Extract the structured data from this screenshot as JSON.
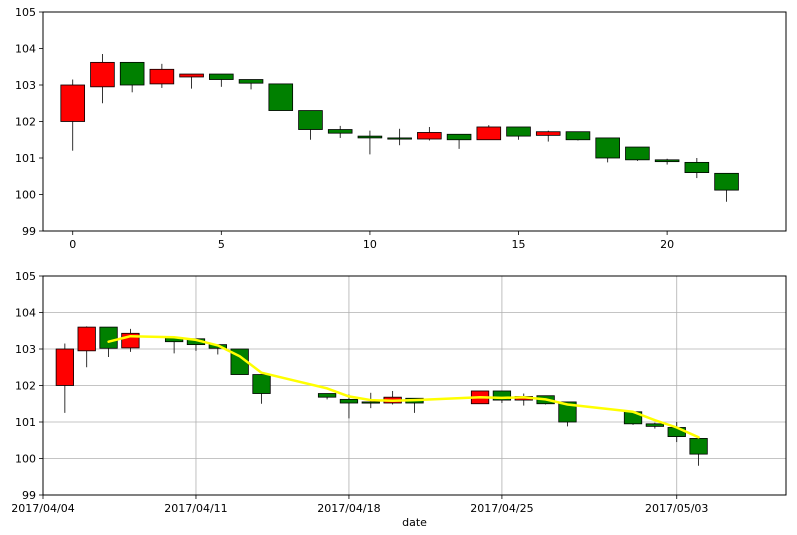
{
  "chart_data": [
    {
      "type": "candlestick",
      "xlim": [
        -1,
        24
      ],
      "ylim": [
        99,
        105
      ],
      "x_ticks": [
        0,
        5,
        10,
        15,
        20
      ],
      "y_ticks": [
        99,
        100,
        101,
        102,
        103,
        104,
        105
      ],
      "grid": false,
      "xlabel": "",
      "ylabel": "",
      "up_color": "#ff0000",
      "down_color": "#008000",
      "candles": [
        {
          "x": 0,
          "open": 102.0,
          "high": 103.15,
          "low": 101.2,
          "close": 103.0
        },
        {
          "x": 1,
          "open": 102.95,
          "high": 103.85,
          "low": 102.5,
          "close": 103.62
        },
        {
          "x": 2,
          "open": 103.62,
          "high": 103.62,
          "low": 102.8,
          "close": 103.0
        },
        {
          "x": 3,
          "open": 103.03,
          "high": 103.58,
          "low": 102.92,
          "close": 103.43
        },
        {
          "x": 4,
          "open": 103.22,
          "high": 103.3,
          "low": 102.9,
          "close": 103.3
        },
        {
          "x": 5,
          "open": 103.3,
          "high": 103.3,
          "low": 102.95,
          "close": 103.15
        },
        {
          "x": 6,
          "open": 103.15,
          "high": 103.15,
          "low": 102.88,
          "close": 103.05
        },
        {
          "x": 7,
          "open": 103.03,
          "high": 103.03,
          "low": 102.3,
          "close": 102.3
        },
        {
          "x": 8,
          "open": 102.3,
          "high": 102.3,
          "low": 101.5,
          "close": 101.78
        },
        {
          "x": 9,
          "open": 101.78,
          "high": 101.88,
          "low": 101.55,
          "close": 101.68
        },
        {
          "x": 10,
          "open": 101.6,
          "high": 101.75,
          "low": 101.1,
          "close": 101.55
        },
        {
          "x": 11,
          "open": 101.55,
          "high": 101.8,
          "low": 101.35,
          "close": 101.52
        },
        {
          "x": 12,
          "open": 101.52,
          "high": 101.85,
          "low": 101.48,
          "close": 101.7
        },
        {
          "x": 13,
          "open": 101.65,
          "high": 101.65,
          "low": 101.25,
          "close": 101.5
        },
        {
          "x": 14,
          "open": 101.5,
          "high": 101.9,
          "low": 101.5,
          "close": 101.85
        },
        {
          "x": 15,
          "open": 101.85,
          "high": 101.85,
          "low": 101.5,
          "close": 101.6
        },
        {
          "x": 16,
          "open": 101.62,
          "high": 101.75,
          "low": 101.45,
          "close": 101.72
        },
        {
          "x": 17,
          "open": 101.72,
          "high": 101.72,
          "low": 101.48,
          "close": 101.5
        },
        {
          "x": 18,
          "open": 101.55,
          "high": 101.55,
          "low": 100.88,
          "close": 101.0
        },
        {
          "x": 19,
          "open": 101.3,
          "high": 101.3,
          "low": 100.92,
          "close": 100.95
        },
        {
          "x": 20,
          "open": 100.95,
          "high": 100.98,
          "low": 100.82,
          "close": 100.9
        },
        {
          "x": 21,
          "open": 100.88,
          "high": 101.0,
          "low": 100.45,
          "close": 100.6
        },
        {
          "x": 22,
          "open": 100.58,
          "high": 100.58,
          "low": 99.8,
          "close": 100.12
        }
      ]
    },
    {
      "type": "candlestick",
      "xlim": [
        "2017-04-04",
        "2017-05-08"
      ],
      "ylim": [
        99,
        105
      ],
      "x_tick_labels": [
        "2017/04/04",
        "2017/04/11",
        "2017/04/18",
        "2017/04/25",
        "2017/05/03"
      ],
      "y_ticks": [
        99,
        100,
        101,
        102,
        103,
        104,
        105
      ],
      "grid": true,
      "xlabel": "date",
      "ylabel": "",
      "up_color": "#ff0000",
      "down_color": "#008000",
      "line_color": "#ffff00",
      "candles": [
        {
          "date": "2017-04-05",
          "open": 102.0,
          "high": 103.15,
          "low": 101.25,
          "close": 103.0
        },
        {
          "date": "2017-04-06",
          "open": 102.95,
          "high": 103.62,
          "low": 102.5,
          "close": 103.6
        },
        {
          "date": "2017-04-07",
          "open": 103.6,
          "high": 103.6,
          "low": 102.78,
          "close": 103.02
        },
        {
          "date": "2017-04-08",
          "open": 103.03,
          "high": 103.55,
          "low": 102.92,
          "close": 103.43
        },
        {
          "date": "2017-04-10",
          "open": 103.3,
          "high": 103.3,
          "low": 102.88,
          "close": 103.2
        },
        {
          "date": "2017-04-11",
          "open": 103.28,
          "high": 103.28,
          "low": 102.95,
          "close": 103.12
        },
        {
          "date": "2017-04-12",
          "open": 103.12,
          "high": 103.12,
          "low": 102.85,
          "close": 103.02
        },
        {
          "date": "2017-04-13",
          "open": 103.0,
          "high": 103.0,
          "low": 102.3,
          "close": 102.3
        },
        {
          "date": "2017-04-14",
          "open": 102.3,
          "high": 102.3,
          "low": 101.5,
          "close": 101.78
        },
        {
          "date": "2017-04-17",
          "open": 101.78,
          "high": 101.78,
          "low": 101.62,
          "close": 101.68
        },
        {
          "date": "2017-04-18",
          "open": 101.62,
          "high": 101.75,
          "low": 101.1,
          "close": 101.52
        },
        {
          "date": "2017-04-19",
          "open": 101.55,
          "high": 101.8,
          "low": 101.38,
          "close": 101.52
        },
        {
          "date": "2017-04-20",
          "open": 101.52,
          "high": 101.85,
          "low": 101.48,
          "close": 101.68
        },
        {
          "date": "2017-04-21",
          "open": 101.65,
          "high": 101.65,
          "low": 101.25,
          "close": 101.52
        },
        {
          "date": "2017-04-24",
          "open": 101.5,
          "high": 101.85,
          "low": 101.5,
          "close": 101.85
        },
        {
          "date": "2017-04-25",
          "open": 101.85,
          "high": 101.85,
          "low": 101.52,
          "close": 101.6
        },
        {
          "date": "2017-04-26",
          "open": 101.6,
          "high": 101.78,
          "low": 101.45,
          "close": 101.7
        },
        {
          "date": "2017-04-27",
          "open": 101.72,
          "high": 101.72,
          "low": 101.48,
          "close": 101.5
        },
        {
          "date": "2017-04-28",
          "open": 101.55,
          "high": 101.55,
          "low": 100.88,
          "close": 101.0
        },
        {
          "date": "2017-05-01",
          "open": 101.28,
          "high": 101.28,
          "low": 100.92,
          "close": 100.95
        },
        {
          "date": "2017-05-02",
          "open": 100.95,
          "high": 100.98,
          "low": 100.82,
          "close": 100.88
        },
        {
          "date": "2017-05-03",
          "open": 100.85,
          "high": 101.0,
          "low": 100.45,
          "close": 100.6
        },
        {
          "date": "2017-05-04",
          "open": 100.55,
          "high": 100.55,
          "low": 99.8,
          "close": 100.12
        }
      ],
      "line": [
        {
          "date": "2017-04-07",
          "y": 103.2
        },
        {
          "date": "2017-04-08",
          "y": 103.35
        },
        {
          "date": "2017-04-10",
          "y": 103.32
        },
        {
          "date": "2017-04-11",
          "y": 103.25
        },
        {
          "date": "2017-04-12",
          "y": 103.1
        },
        {
          "date": "2017-04-13",
          "y": 102.8
        },
        {
          "date": "2017-04-14",
          "y": 102.35
        },
        {
          "date": "2017-04-17",
          "y": 101.92
        },
        {
          "date": "2017-04-18",
          "y": 101.7
        },
        {
          "date": "2017-04-19",
          "y": 101.6
        },
        {
          "date": "2017-04-20",
          "y": 101.58
        },
        {
          "date": "2017-04-21",
          "y": 101.6
        },
        {
          "date": "2017-04-24",
          "y": 101.68
        },
        {
          "date": "2017-04-25",
          "y": 101.66
        },
        {
          "date": "2017-04-26",
          "y": 101.68
        },
        {
          "date": "2017-04-27",
          "y": 101.62
        },
        {
          "date": "2017-04-28",
          "y": 101.48
        },
        {
          "date": "2017-05-01",
          "y": 101.28
        },
        {
          "date": "2017-05-02",
          "y": 101.05
        },
        {
          "date": "2017-05-03",
          "y": 100.85
        },
        {
          "date": "2017-05-04",
          "y": 100.58
        }
      ]
    }
  ]
}
